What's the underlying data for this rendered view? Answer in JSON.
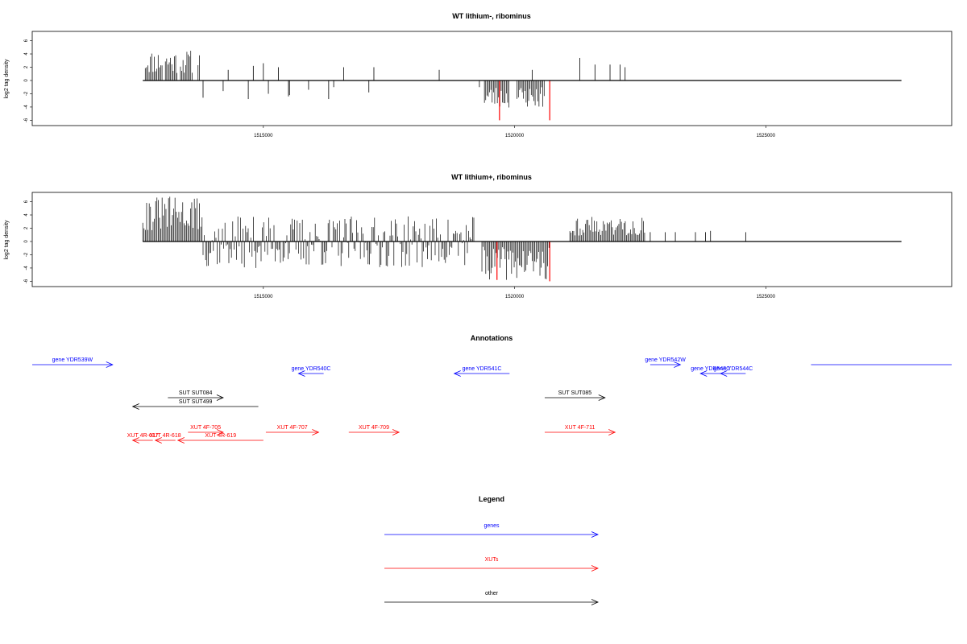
{
  "chart_data": [
    {
      "type": "bar",
      "title": "WT lithium-, ribominus",
      "ylabel": "log2 tag density",
      "xlim": [
        1510400,
        1528700
      ],
      "ylim": [
        -6.8,
        7.4
      ],
      "xticks": [
        1515000,
        1520000,
        1525000
      ],
      "xtick_labels": [
        "1515000",
        "1520000",
        "1525000"
      ],
      "yticks": [
        -6,
        -4,
        -2,
        0,
        2,
        4,
        6
      ],
      "ytick_labels": [
        "-6",
        "-4",
        "-2",
        "0",
        "2",
        "4",
        "6"
      ],
      "baseline": [
        1512600,
        1527700
      ],
      "colors": {
        "default": "#000000",
        "highlight": "#ff0000"
      },
      "series": [
        {
          "positions": [
            [
              1512650,
              1513000
            ],
            [
              1513050,
              1513300
            ],
            [
              1513350,
              1513600
            ],
            [
              1513700,
              1513750
            ]
          ],
          "values": [
            2.6,
            2.8,
            2.4,
            3.2
          ],
          "ranges": true,
          "min": 1.0,
          "max": 4.6,
          "seed": 11
        },
        {
          "positions": [
            1513800,
            1514200,
            1514300,
            1514700,
            1514800,
            1515000,
            1515100,
            1515300,
            1515500,
            1515520,
            1515900,
            1516300,
            1516400,
            1516600,
            1517100,
            1517200,
            1518500,
            1519300,
            1520350,
            1521300,
            1521600,
            1521900,
            1522100,
            1522200
          ],
          "values": [
            -2.6,
            -1.6,
            1.6,
            -2.8,
            2.2,
            2.6,
            -2.0,
            2.0,
            -2.4,
            -2.2,
            -1.4,
            -2.8,
            -1.0,
            2.0,
            -1.8,
            2.0,
            1.6,
            -1.0,
            1.6,
            3.4,
            2.4,
            2.4,
            2.4,
            2.0
          ]
        },
        {
          "positions": [
            [
              1519400,
              1519900
            ],
            [
              1520050,
              1520600
            ]
          ],
          "values": [
            -3.0,
            -2.5
          ],
          "ranges": true,
          "min": -4.2,
          "max": -0.8,
          "seed": 23
        },
        {
          "positions": [
            1519700,
            1520700
          ],
          "values": [
            -6.0,
            -6.0
          ],
          "highlight": true
        }
      ]
    },
    {
      "type": "bar",
      "title": "WT lithium+, ribominus",
      "ylabel": "log2 tag density",
      "xlim": [
        1510400,
        1528700
      ],
      "ylim": [
        -6.8,
        7.4
      ],
      "xticks": [
        1515000,
        1520000,
        1525000
      ],
      "xtick_labels": [
        "1515000",
        "1520000",
        "1525000"
      ],
      "yticks": [
        -6,
        -4,
        -2,
        0,
        2,
        4,
        6
      ],
      "ytick_labels": [
        "-6",
        "-4",
        "-2",
        "0",
        "2",
        "4",
        "6"
      ],
      "baseline": [
        1512600,
        1527700
      ],
      "colors": {
        "default": "#000000",
        "highlight": "#ff0000"
      },
      "series": [
        {
          "positions": [
            [
              1512600,
              1513800
            ]
          ],
          "values": [
            3.5
          ],
          "ranges": true,
          "min": 1.5,
          "max": 6.8,
          "seed": 31
        },
        {
          "positions": [
            [
              1513800,
              1519200
            ]
          ],
          "values": [
            -1.5
          ],
          "ranges": true,
          "min": -4.0,
          "max": 3.8,
          "seed": 37
        },
        {
          "positions": [
            [
              1519350,
              1520700
            ]
          ],
          "values": [
            -3.0
          ],
          "ranges": true,
          "min": -5.8,
          "max": -0.8,
          "seed": 41
        },
        {
          "positions": [
            [
              1521100,
              1522600
            ]
          ],
          "values": [
            2.0
          ],
          "ranges": true,
          "min": 0.8,
          "max": 3.8,
          "seed": 43
        },
        {
          "positions": [
            1522700,
            1523000,
            1523200,
            1523600,
            1523800,
            1523900,
            1524600
          ],
          "values": [
            1.4,
            1.4,
            1.4,
            1.4,
            1.4,
            1.6,
            1.4
          ]
        },
        {
          "positions": [
            1519650,
            1520700
          ],
          "values": [
            -5.8,
            -6.0
          ],
          "highlight": true
        }
      ]
    }
  ],
  "annotations": {
    "title": "Annotations",
    "xlim": [
      1510400,
      1528700
    ],
    "features": [
      {
        "label": "gene YDR539W",
        "start": 1510400,
        "end": 1512000,
        "dir": "+",
        "row": 0,
        "cat": "gene"
      },
      {
        "label": "gene YDR540C",
        "start": 1515700,
        "end": 1516200,
        "dir": "-",
        "row": 1,
        "cat": "gene"
      },
      {
        "label": "gene YDR541C",
        "start": 1518800,
        "end": 1519900,
        "dir": "-",
        "row": 1,
        "cat": "gene"
      },
      {
        "label": "gene YDR542W",
        "start": 1522700,
        "end": 1523300,
        "dir": "+",
        "row": 0,
        "cat": "gene"
      },
      {
        "label": "gene YDR543C",
        "start": 1523700,
        "end": 1524100,
        "dir": "-",
        "row": 1,
        "cat": "gene"
      },
      {
        "label": "gene YDR544C",
        "start": 1524100,
        "end": 1524600,
        "dir": "-",
        "row": 1,
        "cat": "gene"
      },
      {
        "label": "",
        "start": 1525900,
        "end": 1528700,
        "dir": "none",
        "row": 0,
        "cat": "gene"
      },
      {
        "label": "SUT SUT084",
        "start": 1513100,
        "end": 1514200,
        "dir": "+",
        "row": 2,
        "cat": "other"
      },
      {
        "label": "SUT SUT499",
        "start": 1512400,
        "end": 1514900,
        "dir": "-",
        "row": 3,
        "cat": "other"
      },
      {
        "label": "SUT SUT085",
        "start": 1520600,
        "end": 1521800,
        "dir": "+",
        "row": 2,
        "cat": "other"
      },
      {
        "label": "XUT 4F-705",
        "start": 1513500,
        "end": 1514200,
        "dir": "+",
        "row": 4,
        "cat": "xut"
      },
      {
        "label": "XUT 4F-707",
        "start": 1515050,
        "end": 1516100,
        "dir": "+",
        "row": 4,
        "cat": "xut"
      },
      {
        "label": "XUT 4F-709",
        "start": 1516700,
        "end": 1517700,
        "dir": "+",
        "row": 4,
        "cat": "xut"
      },
      {
        "label": "XUT 4F-711",
        "start": 1520600,
        "end": 1522000,
        "dir": "+",
        "row": 4,
        "cat": "xut"
      },
      {
        "label": "XUT 4R-617",
        "start": 1512400,
        "end": 1512800,
        "dir": "-",
        "row": 5,
        "cat": "xut"
      },
      {
        "label": "XUT 4R-618",
        "start": 1512850,
        "end": 1513250,
        "dir": "-",
        "row": 5,
        "cat": "xut"
      },
      {
        "label": "XUT 4R-619",
        "start": 1513300,
        "end": 1515000,
        "dir": "-",
        "row": 5,
        "cat": "xut"
      }
    ]
  },
  "legend": {
    "title": "Legend",
    "items": [
      {
        "label": "genes",
        "cat": "gene"
      },
      {
        "label": "XUTs",
        "cat": "xut"
      },
      {
        "label": "other",
        "cat": "other"
      }
    ]
  },
  "colors": {
    "gene": "#0000ff",
    "xut": "#ff0000",
    "other": "#000000",
    "axis": "#000000"
  }
}
